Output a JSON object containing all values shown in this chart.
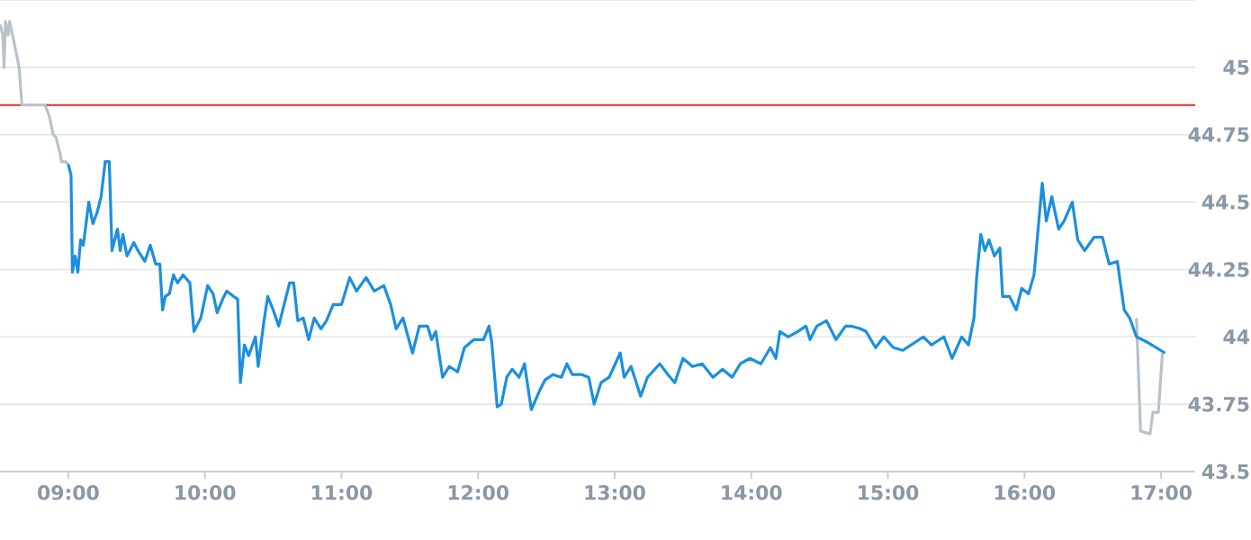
{
  "chart_data": {
    "type": "line",
    "xlim": [
      8.5,
      17.25
    ],
    "xticks": [
      {
        "value": 9,
        "label": "09:00"
      },
      {
        "value": 10,
        "label": "10:00"
      },
      {
        "value": 11,
        "label": "11:00"
      },
      {
        "value": 12,
        "label": "12:00"
      },
      {
        "value": 13,
        "label": "13:00"
      },
      {
        "value": 14,
        "label": "14:00"
      },
      {
        "value": 15,
        "label": "15:00"
      },
      {
        "value": 16,
        "label": "16:00"
      },
      {
        "value": 17,
        "label": "17:00"
      }
    ],
    "ylim": [
      43.5,
      45.25
    ],
    "yticks": [
      43.5,
      43.75,
      44,
      44.25,
      44.5,
      44.75,
      45
    ],
    "grid": "y",
    "marker": "none",
    "line_style": "solid",
    "ref_lines": [
      {
        "axis": "y",
        "value": 44.86,
        "color": "#e0302a"
      }
    ],
    "series": [
      {
        "color": "#b8c2cc",
        "x": [
          8.5,
          8.52,
          8.53,
          8.54,
          8.56,
          8.57,
          8.6,
          8.64,
          8.66,
          8.83,
          8.86,
          8.89,
          8.91,
          8.94,
          8.95,
          8.98,
          9.0
        ],
        "values": [
          45.16,
          45.12,
          45.0,
          45.17,
          45.12,
          45.17,
          45.1,
          45.0,
          44.86,
          44.86,
          44.82,
          44.75,
          44.74,
          44.68,
          44.65,
          44.65,
          44.64
        ]
      },
      {
        "color": "#b8c2cc",
        "x": [
          16.82,
          16.85,
          16.92,
          16.94,
          16.98,
          17.01
        ],
        "values": [
          44.07,
          43.65,
          43.64,
          43.72,
          43.72,
          43.94
        ]
      },
      {
        "color": "#1a8fe0",
        "x": [
          9.0,
          9.02,
          9.03,
          9.05,
          9.07,
          9.09,
          9.11,
          9.15,
          9.18,
          9.21,
          9.24,
          9.27,
          9.3,
          9.32,
          9.36,
          9.38,
          9.4,
          9.43,
          9.48,
          9.51,
          9.56,
          9.6,
          9.64,
          9.67,
          9.69,
          9.71,
          9.74,
          9.77,
          9.8,
          9.84,
          9.89,
          9.92,
          9.97,
          10.02,
          10.06,
          10.09,
          10.13,
          10.16,
          10.21,
          10.24,
          10.26,
          10.29,
          10.32,
          10.37,
          10.39,
          10.43,
          10.46,
          10.5,
          10.54,
          10.59,
          10.62,
          10.65,
          10.68,
          10.72,
          10.76,
          10.8,
          10.85,
          10.89,
          10.94,
          11.0,
          11.06,
          11.11,
          11.18,
          11.24,
          11.31,
          11.36,
          11.4,
          11.45,
          11.52,
          11.57,
          11.63,
          11.66,
          11.69,
          11.74,
          11.79,
          11.85,
          11.9,
          11.97,
          12.04,
          12.08,
          12.1,
          12.14,
          12.17,
          12.21,
          12.25,
          12.3,
          12.34,
          12.36,
          12.39,
          12.45,
          12.49,
          12.55,
          12.61,
          12.65,
          12.69,
          12.76,
          12.81,
          12.85,
          12.9,
          12.96,
          13.04,
          13.07,
          13.12,
          13.19,
          13.24,
          13.33,
          13.39,
          13.44,
          13.5,
          13.57,
          13.64,
          13.72,
          13.79,
          13.86,
          13.92,
          13.99,
          14.07,
          14.14,
          14.18,
          14.21,
          14.27,
          14.34,
          14.4,
          14.43,
          14.48,
          14.55,
          14.62,
          14.69,
          14.73,
          14.8,
          14.84,
          14.91,
          14.97,
          15.04,
          15.11,
          15.17,
          15.26,
          15.32,
          15.41,
          15.47,
          15.54,
          15.59,
          15.63,
          15.65,
          15.68,
          15.71,
          15.74,
          15.78,
          15.82,
          15.84,
          15.89,
          15.94,
          15.98,
          16.03,
          16.07,
          16.13,
          16.16,
          16.2,
          16.25,
          16.29,
          16.35,
          16.39,
          16.44,
          16.51,
          16.57,
          16.62,
          16.68,
          16.73,
          16.77,
          16.82,
          16.9,
          17.03
        ],
        "values": [
          44.64,
          44.6,
          44.24,
          44.3,
          44.24,
          44.36,
          44.34,
          44.5,
          44.42,
          44.46,
          44.52,
          44.65,
          44.65,
          44.32,
          44.4,
          44.32,
          44.38,
          44.3,
          44.35,
          44.32,
          44.28,
          44.34,
          44.27,
          44.27,
          44.1,
          44.15,
          44.16,
          44.23,
          44.2,
          44.23,
          44.2,
          44.02,
          44.07,
          44.19,
          44.16,
          44.09,
          44.14,
          44.17,
          44.15,
          44.14,
          43.83,
          43.97,
          43.93,
          44.0,
          43.89,
          44.05,
          44.15,
          44.1,
          44.04,
          44.14,
          44.2,
          44.2,
          44.06,
          44.07,
          43.99,
          44.07,
          44.03,
          44.06,
          44.12,
          44.12,
          44.22,
          44.17,
          44.22,
          44.17,
          44.19,
          44.12,
          44.03,
          44.07,
          43.94,
          44.04,
          44.04,
          43.99,
          44.02,
          43.85,
          43.89,
          43.87,
          43.96,
          43.99,
          43.99,
          44.04,
          43.98,
          43.74,
          43.75,
          43.85,
          43.88,
          43.85,
          43.9,
          43.83,
          43.73,
          43.8,
          43.84,
          43.86,
          43.85,
          43.9,
          43.86,
          43.86,
          43.85,
          43.75,
          43.83,
          43.85,
          43.94,
          43.85,
          43.89,
          43.78,
          43.85,
          43.9,
          43.86,
          43.83,
          43.92,
          43.89,
          43.9,
          43.85,
          43.88,
          43.85,
          43.9,
          43.92,
          43.9,
          43.96,
          43.92,
          44.02,
          44.0,
          44.02,
          44.04,
          43.99,
          44.04,
          44.06,
          43.99,
          44.04,
          44.04,
          44.03,
          44.02,
          43.96,
          44.0,
          43.96,
          43.95,
          43.97,
          44.0,
          43.97,
          44.0,
          43.92,
          44.0,
          43.97,
          44.07,
          44.22,
          44.38,
          44.32,
          44.36,
          44.3,
          44.33,
          44.15,
          44.15,
          44.1,
          44.18,
          44.16,
          44.23,
          44.57,
          44.43,
          44.52,
          44.4,
          44.43,
          44.5,
          44.36,
          44.32,
          44.37,
          44.37,
          44.27,
          44.28,
          44.1,
          44.07,
          44.0,
          43.98,
          43.94
        ]
      }
    ]
  }
}
